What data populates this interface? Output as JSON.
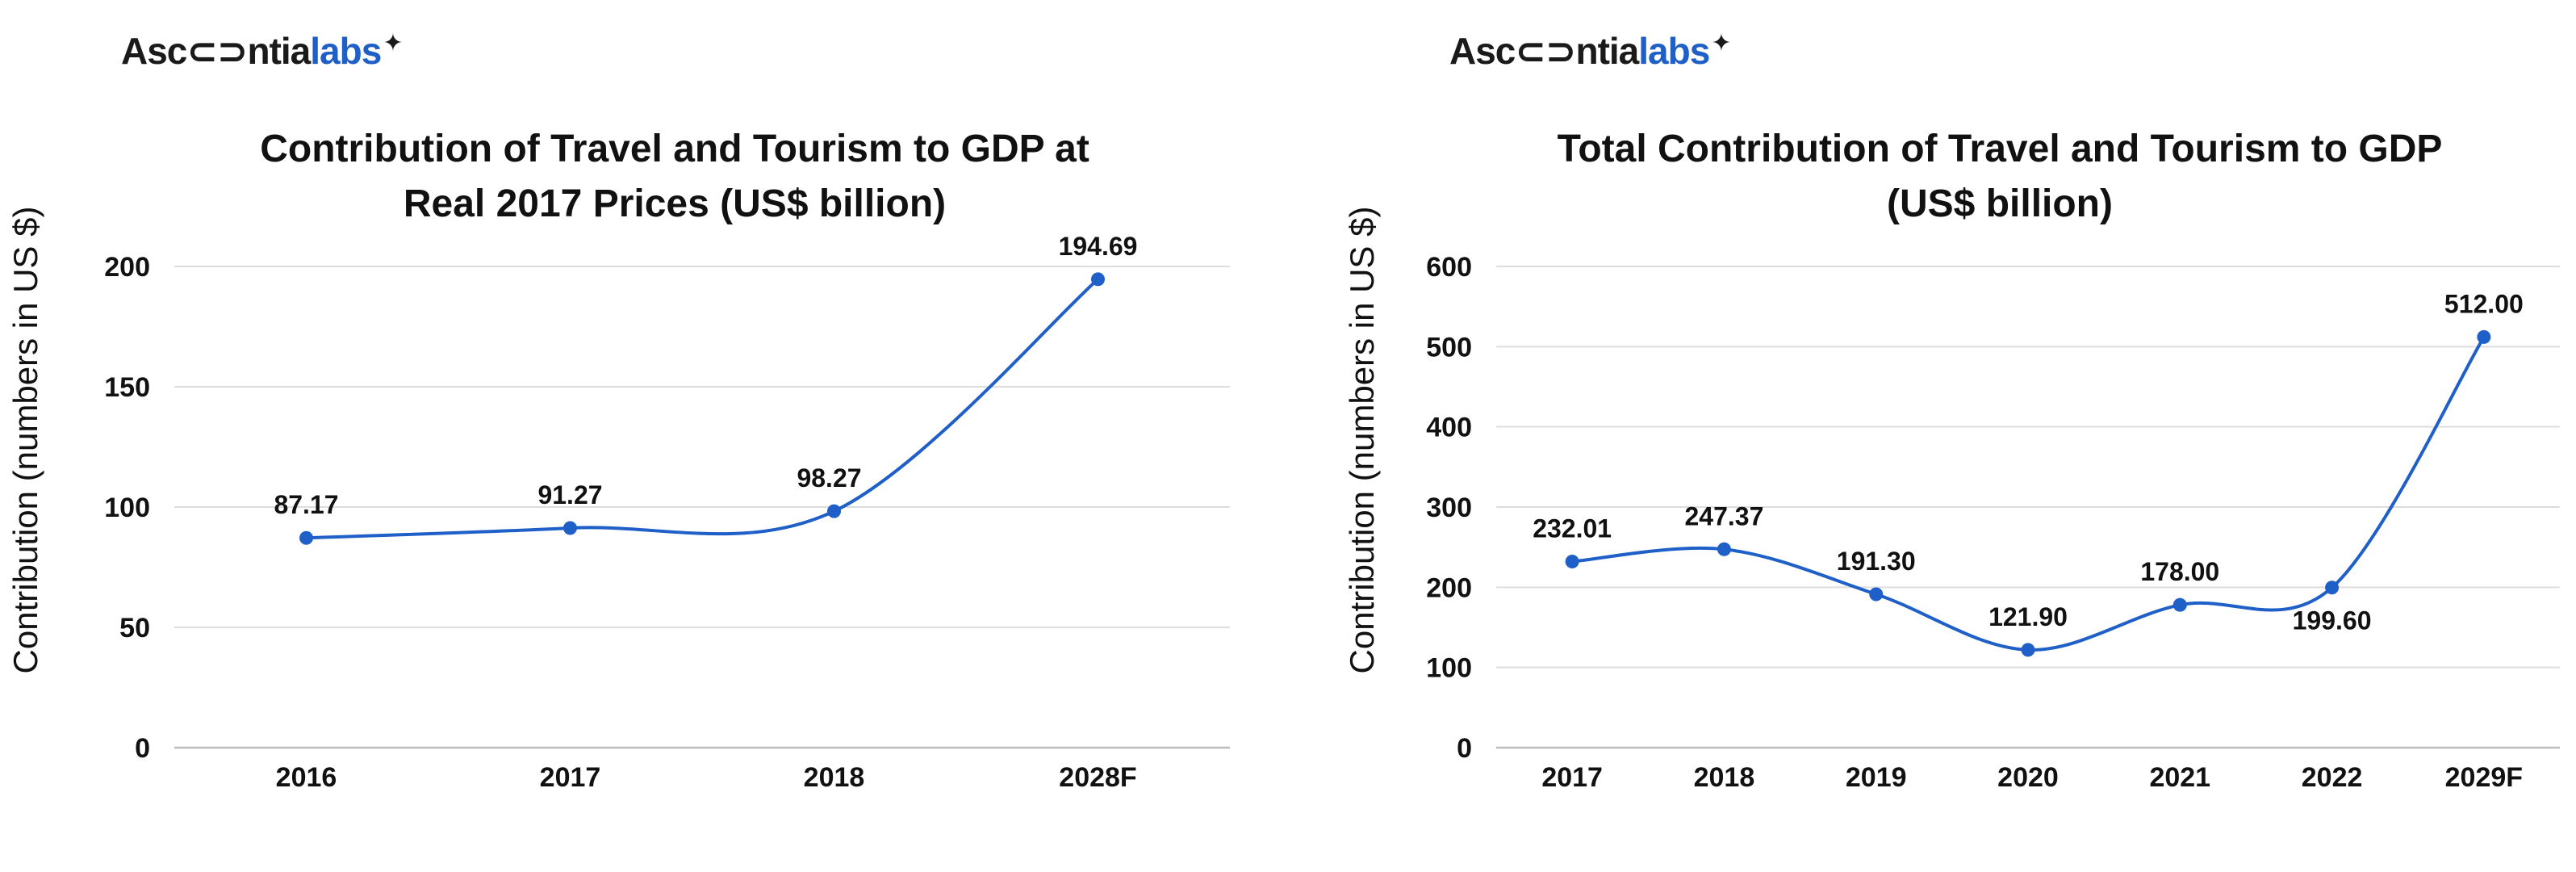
{
  "logo": {
    "part1": "Asc",
    "part2": "ntia",
    "part3": "labs",
    "spark": "✦"
  },
  "charts": [
    {
      "type": "line",
      "title_lines": [
        "Contribution of Travel and Tourism to GDP at",
        "Real 2017 Prices (US$ billion)"
      ],
      "ylabel": "Contribution (numbers in US $)",
      "categories": [
        "2016",
        "2017",
        "2018",
        "2028F"
      ],
      "values": [
        87.17,
        91.27,
        98.27,
        194.69
      ],
      "value_labels": [
        "87.17",
        "91.27",
        "98.27",
        "194.69"
      ],
      "ylim": [
        0,
        200
      ],
      "yticks": [
        0,
        50,
        100,
        150,
        200
      ],
      "grid": true,
      "line_color": "#1f5fc8"
    },
    {
      "type": "line",
      "title_lines": [
        "Total Contribution of Travel and Tourism to GDP",
        "(US$ billion)"
      ],
      "ylabel": "Contribution (numbers in US $)",
      "categories": [
        "2017",
        "2018",
        "2019",
        "2020",
        "2021",
        "2022",
        "2029F"
      ],
      "values": [
        232.01,
        247.37,
        191.3,
        121.9,
        178.0,
        199.6,
        512.0
      ],
      "value_labels": [
        "232.01",
        "247.37",
        "191.30",
        "121.90",
        "178.00",
        "199.60",
        "512.00"
      ],
      "ylim": [
        0,
        600
      ],
      "yticks": [
        0,
        100,
        200,
        300,
        400,
        500,
        600
      ],
      "grid": true,
      "line_color": "#1f5fc8"
    }
  ],
  "chart_data": [
    {
      "type": "line",
      "title": "Contribution of Travel and Tourism to GDP at Real 2017 Prices (US$ billion)",
      "xlabel": "",
      "ylabel": "Contribution (numbers in US $)",
      "categories": [
        "2016",
        "2017",
        "2018",
        "2028F"
      ],
      "series": [
        {
          "values": [
            87.17,
            91.27,
            98.27,
            194.69
          ]
        }
      ],
      "ylim": [
        0,
        200
      ],
      "grid": true
    },
    {
      "type": "line",
      "title": "Total Contribution of Travel and Tourism to GDP (US$ billion)",
      "xlabel": "",
      "ylabel": "Contribution (numbers in US $)",
      "categories": [
        "2017",
        "2018",
        "2019",
        "2020",
        "2021",
        "2022",
        "2029F"
      ],
      "series": [
        {
          "values": [
            232.01,
            247.37,
            191.3,
            121.9,
            178.0,
            199.6,
            512.0
          ]
        }
      ],
      "ylim": [
        0,
        600
      ],
      "grid": true
    }
  ]
}
